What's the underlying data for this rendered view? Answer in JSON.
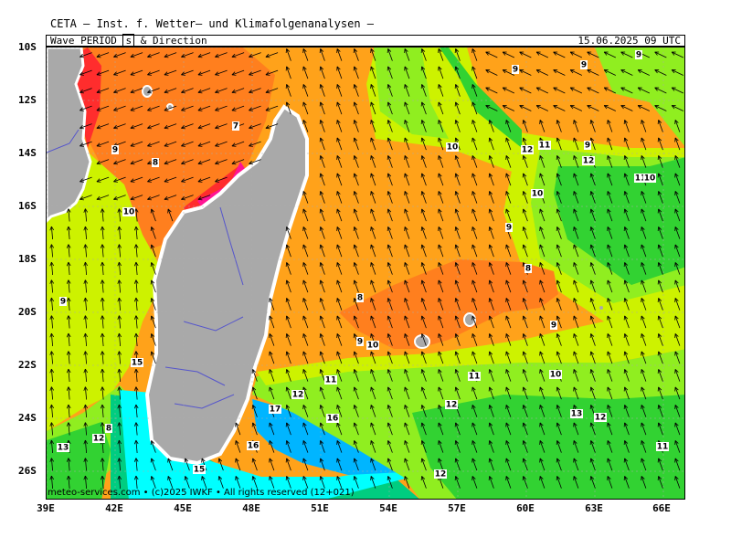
{
  "header": {
    "title": "CETA – Inst. f. Wetter– und Klimafolgenanalysen –",
    "subtitle_part1": "Wave_PERIOD_",
    "subtitle_unit": "s",
    "subtitle_part2": "_&_Direction",
    "datetime": "15.06.2025 09 UTC"
  },
  "footer": {
    "text": "meteo-services.com • (c)2025 IWKF • All rights reserved (12+021)"
  },
  "axes": {
    "lat_labels": [
      "10S",
      "12S",
      "14S",
      "16S",
      "18S",
      "20S",
      "22S",
      "24S",
      "26S"
    ],
    "lon_labels": [
      "39E",
      "42E",
      "45E",
      "48E",
      "51E",
      "54E",
      "57E",
      "60E",
      "63E",
      "66E"
    ]
  },
  "colors": {
    "land": "#a9a9a9",
    "period_7": "#ff2d2d",
    "period_8": "#ff7f1e",
    "period_9_10": "#ffa21a",
    "period_11": "#cdf200",
    "period_12": "#90ee20",
    "period_13_14": "#32d232",
    "period_15_16": "#00cd80",
    "period_17": "#00ffff",
    "period_18": "#00b5ff",
    "magenta": "#ff1493"
  },
  "contour_labels": [
    {
      "text": "9"
    },
    {
      "text": "9"
    },
    {
      "text": "7"
    },
    {
      "text": "8"
    },
    {
      "text": "9"
    },
    {
      "text": "10"
    },
    {
      "text": "9"
    },
    {
      "text": "15"
    },
    {
      "text": "12"
    },
    {
      "text": "8"
    },
    {
      "text": "13"
    },
    {
      "text": "15"
    },
    {
      "text": "16"
    },
    {
      "text": "17"
    },
    {
      "text": "12"
    },
    {
      "text": "16"
    },
    {
      "text": "12"
    },
    {
      "text": "11"
    },
    {
      "text": "11"
    },
    {
      "text": "12"
    },
    {
      "text": "10"
    },
    {
      "text": "9"
    },
    {
      "text": "10"
    },
    {
      "text": "8"
    },
    {
      "text": "8"
    },
    {
      "text": "9"
    },
    {
      "text": "10"
    },
    {
      "text": "9"
    },
    {
      "text": "10"
    },
    {
      "text": "12"
    },
    {
      "text": "11"
    },
    {
      "text": "9"
    },
    {
      "text": "12"
    },
    {
      "text": "11"
    },
    {
      "text": "10"
    },
    {
      "text": "13"
    },
    {
      "text": "12"
    },
    {
      "text": "11"
    },
    {
      "text": "9"
    }
  ],
  "arrow_field": {
    "dominant_direction": "north-northwest",
    "secondary_direction_sw_channel": "north-northeast",
    "secondary_direction_north_east": "west"
  }
}
